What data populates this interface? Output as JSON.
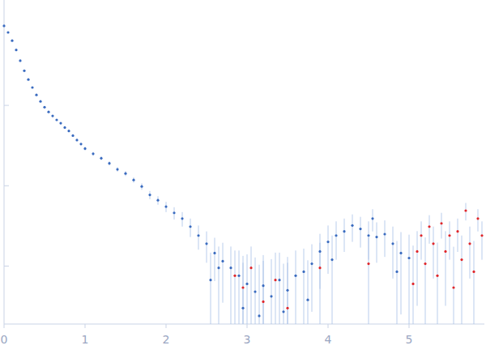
{
  "chart_data": {
    "type": "scatter",
    "log": "y",
    "tick_labels": "x",
    "grid": false,
    "xlim": [
      0,
      5.93
    ],
    "xticks": [
      0,
      1,
      2,
      3,
      4,
      5
    ],
    "ylim": [
      0.00019,
      2.05
    ],
    "yticks": [
      0.1,
      0.01,
      0.001
    ],
    "series": [
      {
        "color": "#3a6bbf",
        "marker": "circle",
        "x": [
          0.0,
          0.05,
          0.1,
          0.15,
          0.2,
          0.25,
          0.3,
          0.35,
          0.4,
          0.45,
          0.5,
          0.55,
          0.6,
          0.65,
          0.7,
          0.75,
          0.8,
          0.85,
          0.9,
          0.95,
          1.0,
          1.1,
          1.2,
          1.3,
          1.4,
          1.5,
          1.6,
          1.7,
          1.8,
          1.9,
          2.0,
          2.1,
          2.2,
          2.3,
          2.4,
          2.5,
          2.55,
          2.6,
          2.65,
          2.7,
          2.8,
          2.9,
          2.95,
          3.0,
          3.1,
          3.15,
          3.2,
          3.3,
          3.4,
          3.45,
          3.5,
          3.6,
          3.7,
          3.75,
          3.8,
          3.9,
          4.0,
          4.05,
          4.1,
          4.2,
          4.3,
          4.4,
          4.5,
          4.55,
          4.6,
          4.7,
          4.8,
          4.85,
          4.9,
          5.0
        ],
        "values": [
          0.977,
          0.81,
          0.64,
          0.49,
          0.36,
          0.27,
          0.21,
          0.167,
          0.135,
          0.112,
          0.095,
          0.083,
          0.074,
          0.066,
          0.06,
          0.053,
          0.048,
          0.042,
          0.037,
          0.033,
          0.029,
          0.025,
          0.022,
          0.019,
          0.016,
          0.0142,
          0.0118,
          0.0098,
          0.0077,
          0.0066,
          0.0055,
          0.0046,
          0.0039,
          0.0031,
          0.0024,
          0.0019,
          0.00067,
          0.00145,
          0.00095,
          0.00115,
          0.00095,
          0.00076,
          0.0003,
          0.0006,
          0.00048,
          0.00024,
          0.00057,
          0.00042,
          0.00067,
          0.00027,
          0.0005,
          0.00076,
          0.00085,
          0.00038,
          0.00107,
          0.00152,
          0.002,
          0.0012,
          0.0024,
          0.0027,
          0.0032,
          0.0029,
          0.0024,
          0.0039,
          0.0023,
          0.0025,
          0.0019,
          0.00085,
          0.00145,
          0.00126
        ],
        "errors": [
          0.005,
          0.004,
          0.003,
          0.002,
          0.0015,
          0.001,
          0.001,
          0.001,
          0.001,
          0.001,
          0.001,
          0.001,
          0.001,
          0.001,
          0.001,
          0.001,
          0.001,
          0.001,
          0.001,
          0.001,
          0.0015,
          0.0013,
          0.0012,
          0.0011,
          0.001,
          0.001,
          0.0009,
          0.0009,
          0.0009,
          0.0008,
          0.0008,
          0.0008,
          0.0008,
          0.0008,
          0.0008,
          0.0008,
          0.0008,
          0.0008,
          0.0008,
          0.0008,
          0.0008,
          0.0008,
          0.0008,
          0.0008,
          0.0008,
          0.0008,
          0.0008,
          0.0008,
          0.0008,
          0.0008,
          0.0008,
          0.0008,
          0.0008,
          0.0008,
          0.0008,
          0.001,
          0.0012,
          0.0012,
          0.0012,
          0.0012,
          0.0012,
          0.0012,
          0.0012,
          0.0012,
          0.0012,
          0.0012,
          0.0012,
          0.0012,
          0.0012,
          0.0012
        ]
      },
      {
        "color": "#e0262a",
        "marker": "circle",
        "x": [
          2.85,
          2.95,
          3.05,
          3.2,
          3.35,
          3.5,
          3.9,
          4.5,
          5.05,
          5.1,
          5.15,
          5.2,
          5.25,
          5.3,
          5.35,
          5.4,
          5.45,
          5.5,
          5.55,
          5.6,
          5.65,
          5.7,
          5.75,
          5.8,
          5.85,
          5.9
        ],
        "values": [
          0.00076,
          0.00054,
          0.00095,
          0.00036,
          0.00067,
          0.0003,
          0.00095,
          0.00107,
          0.0006,
          0.00152,
          0.0024,
          0.00107,
          0.0031,
          0.0019,
          0.00076,
          0.0034,
          0.00152,
          0.0024,
          0.00054,
          0.0027,
          0.0012,
          0.0049,
          0.0019,
          0.00085,
          0.0039,
          0.0024
        ],
        "errors": [
          0.0008,
          0.0008,
          0.0008,
          0.0008,
          0.0008,
          0.0008,
          0.001,
          0.0012,
          0.0012,
          0.0012,
          0.0012,
          0.0012,
          0.0012,
          0.0012,
          0.0012,
          0.0012,
          0.0012,
          0.0012,
          0.0012,
          0.0012,
          0.0012,
          0.0012,
          0.0012,
          0.0012,
          0.0012,
          0.0012
        ]
      }
    ]
  }
}
